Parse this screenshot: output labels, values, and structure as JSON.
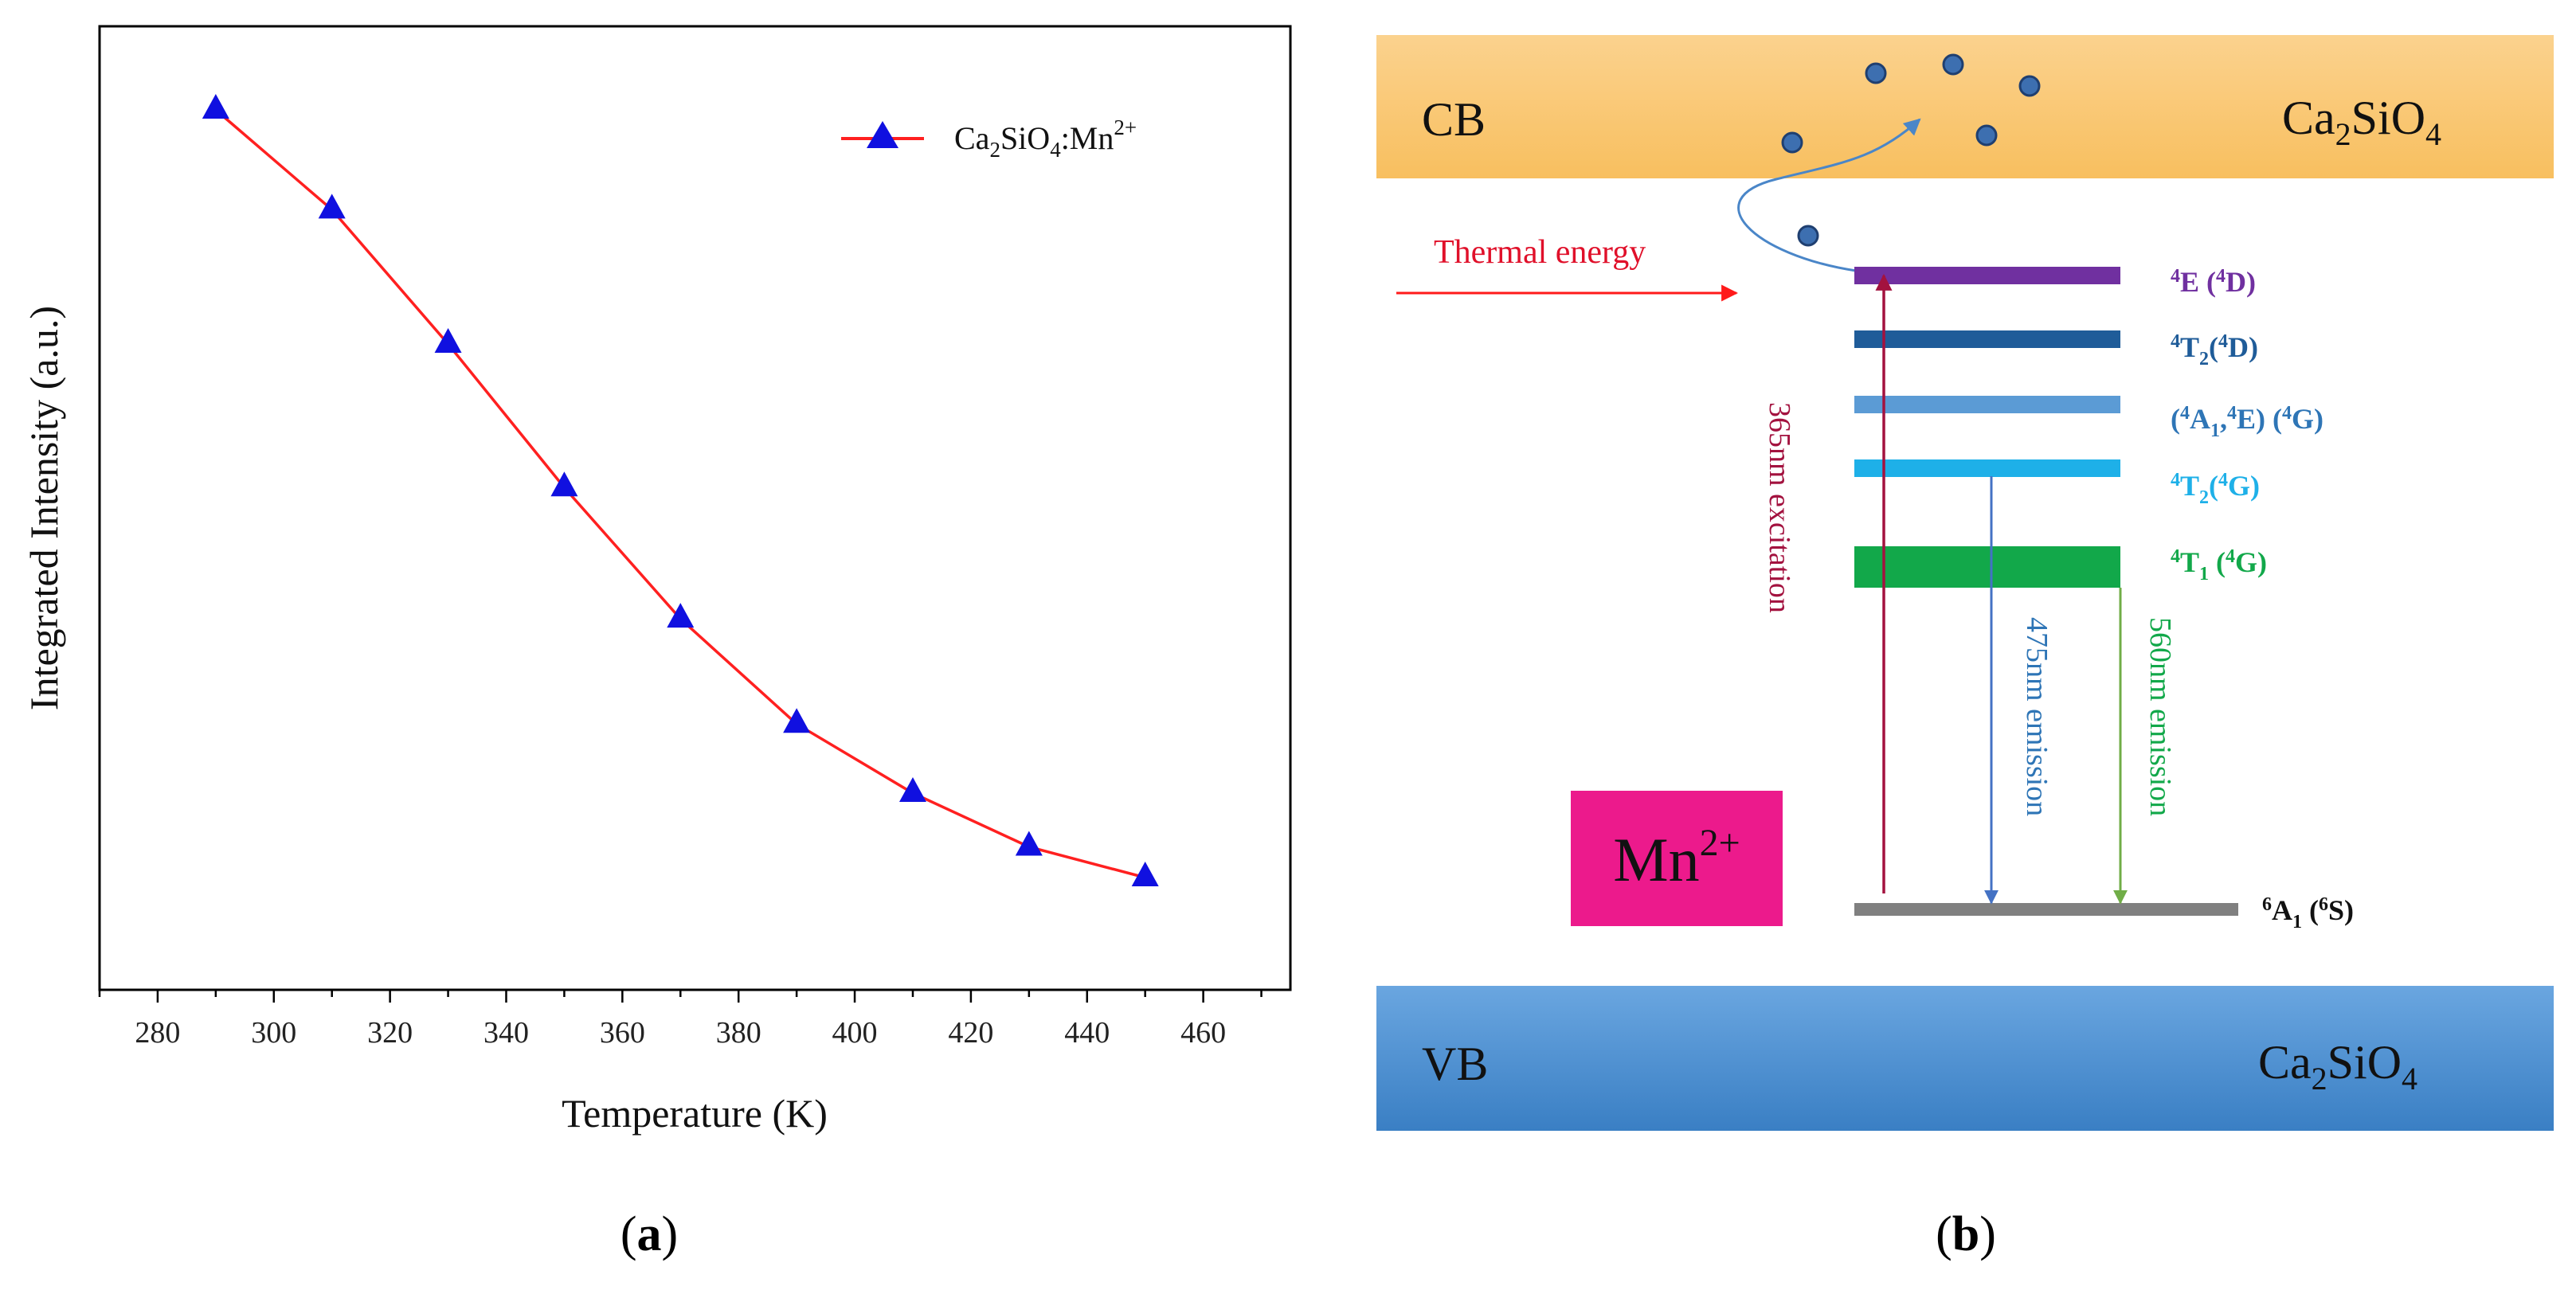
{
  "chart_data": {
    "type": "line",
    "xlabel": "Temperature (K)",
    "ylabel": "Integrated Intensity (a.u.)",
    "xlim": [
      270,
      475
    ],
    "ylim": [
      0,
      1.13
    ],
    "x_ticks": [
      "280",
      "300",
      "320",
      "340",
      "360",
      "380",
      "400",
      "420",
      "440",
      "460"
    ],
    "y_ticks_labeled": false,
    "grid": false,
    "legend_position": "top-right",
    "line_color": "#ff2020",
    "marker_color": "#1010e0",
    "series": [
      {
        "name_parts": {
          "base": "Ca",
          "s1": "2",
          "mid": "SiO",
          "s2": "4",
          "tail": ":Mn",
          "sup": "2+"
        },
        "x": [
          290,
          310,
          330,
          350,
          370,
          390,
          410,
          430,
          450
        ],
        "y": [
          1.0,
          0.87,
          0.695,
          0.508,
          0.337,
          0.2,
          0.11,
          0.04,
          0.0
        ]
      }
    ]
  },
  "panels": {
    "a": "a",
    "b": "b"
  },
  "diagram": {
    "cb": {
      "label": "CB",
      "material": {
        "base": "Ca",
        "s1": "2",
        "mid": "SiO",
        "s2": "4"
      },
      "color": "#f9c46b"
    },
    "vb": {
      "label": "VB",
      "material": {
        "base": "Ca",
        "s1": "2",
        "mid": "SiO",
        "s2": "4"
      },
      "color": "#4a90d4"
    },
    "thermal_energy": "Thermal energy",
    "ion": {
      "base": "Mn",
      "sup": "2+",
      "color": "#ec1a8c"
    },
    "levels": [
      {
        "id": "4E",
        "parts": [
          {
            "t": "4",
            "s": "sup"
          },
          {
            "t": "E ("
          },
          {
            "t": "4",
            "s": "sup"
          },
          {
            "t": "D)"
          }
        ],
        "color": "#7030a0"
      },
      {
        "id": "4T2D",
        "parts": [
          {
            "t": "4",
            "s": "sup"
          },
          {
            "t": "T"
          },
          {
            "t": "2",
            "s": "sub"
          },
          {
            "t": "("
          },
          {
            "t": "4",
            "s": "sup"
          },
          {
            "t": "D)"
          }
        ],
        "color": "#1f5c99"
      },
      {
        "id": "4A1E",
        "parts": [
          {
            "t": "("
          },
          {
            "t": "4",
            "s": "sup"
          },
          {
            "t": "A"
          },
          {
            "t": "1",
            "s": "sub"
          },
          {
            "t": ","
          },
          {
            "t": "4",
            "s": "sup"
          },
          {
            "t": "E) ("
          },
          {
            "t": "4",
            "s": "sup"
          },
          {
            "t": "G)"
          }
        ],
        "color": "#2e75b6"
      },
      {
        "id": "4T2G",
        "parts": [
          {
            "t": "4",
            "s": "sup"
          },
          {
            "t": "T"
          },
          {
            "t": "2",
            "s": "sub"
          },
          {
            "t": "("
          },
          {
            "t": "4",
            "s": "sup"
          },
          {
            "t": "G)"
          }
        ],
        "color": "#1eb0e8"
      },
      {
        "id": "4T1G",
        "parts": [
          {
            "t": "4",
            "s": "sup"
          },
          {
            "t": "T"
          },
          {
            "t": "1",
            "s": "sub"
          },
          {
            "t": " ("
          },
          {
            "t": "4",
            "s": "sup"
          },
          {
            "t": "G)"
          }
        ],
        "color": "#12a84a"
      },
      {
        "id": "6A1",
        "parts": [
          {
            "t": "6",
            "s": "sup"
          },
          {
            "t": "A"
          },
          {
            "t": "1",
            "s": "sub"
          },
          {
            "t": " ("
          },
          {
            "t": "6",
            "s": "sup"
          },
          {
            "t": "S)"
          }
        ],
        "color": "#111111"
      }
    ],
    "transitions": {
      "excitation": "365nm excitation",
      "emission_blue": "475nm emission",
      "emission_green": "560nm emission"
    }
  }
}
